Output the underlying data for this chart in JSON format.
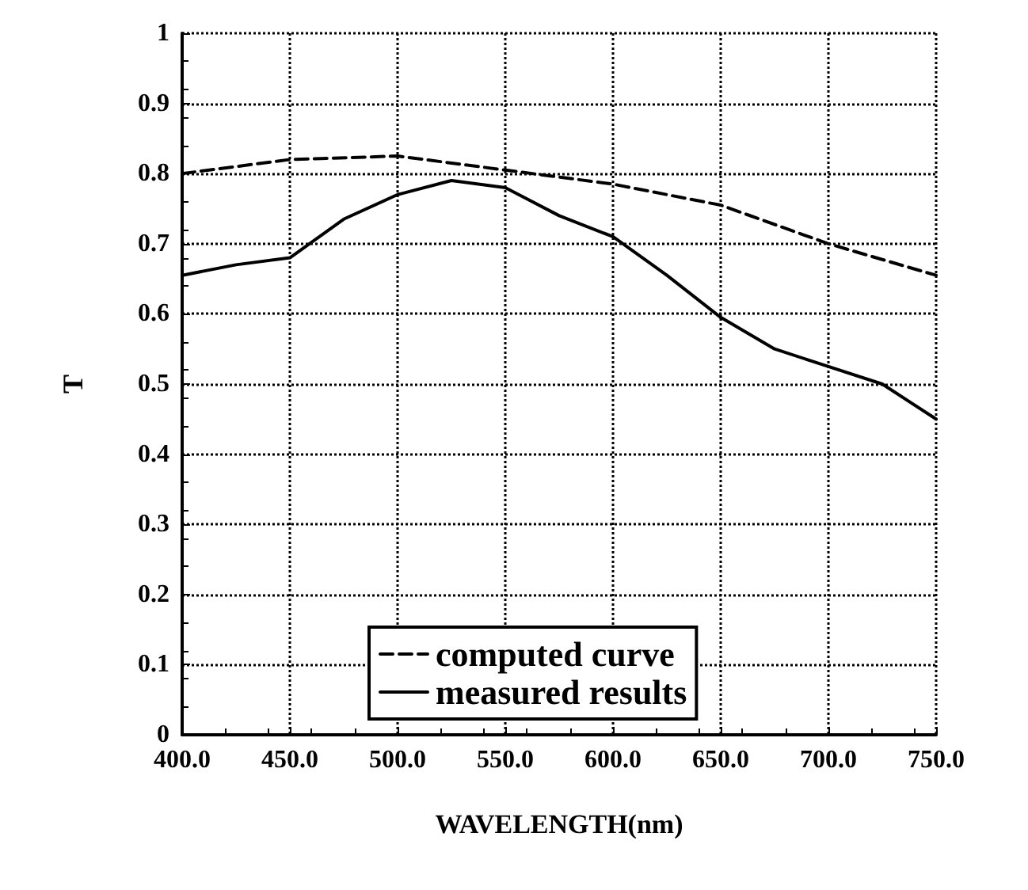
{
  "chart_data": {
    "type": "line",
    "xlabel": "WAVELENGTH(nm)",
    "ylabel": "T",
    "xlim": [
      400,
      750
    ],
    "ylim": [
      0,
      1
    ],
    "xticks": [
      {
        "value": 400,
        "label": "400.0"
      },
      {
        "value": 450,
        "label": "450.0"
      },
      {
        "value": 500,
        "label": "500.0"
      },
      {
        "value": 550,
        "label": "550.0"
      },
      {
        "value": 600,
        "label": "600.0"
      },
      {
        "value": 650,
        "label": "650.0"
      },
      {
        "value": 700,
        "label": "700.0"
      },
      {
        "value": 750,
        "label": "750.0"
      }
    ],
    "yticks": [
      0,
      0.1,
      0.2,
      0.3,
      0.4,
      0.5,
      0.6,
      0.7,
      0.8,
      0.9,
      1
    ],
    "grid": true,
    "legend": "bottom",
    "marker": "none",
    "series": [
      {
        "name": "computed curve",
        "color": "#000000",
        "line_style": "dashed",
        "x": [
          400,
          450,
          500,
          550,
          600,
          650,
          700,
          750
        ],
        "values": [
          0.8,
          0.82,
          0.825,
          0.805,
          0.785,
          0.755,
          0.7,
          0.655
        ]
      },
      {
        "name": "measured results",
        "color": "#000000",
        "line_style": "solid",
        "x": [
          400,
          425,
          450,
          475,
          500,
          525,
          550,
          575,
          600,
          625,
          650,
          675,
          700,
          725,
          750
        ],
        "values": [
          0.655,
          0.67,
          0.68,
          0.735,
          0.77,
          0.79,
          0.78,
          0.74,
          0.71,
          0.655,
          0.595,
          0.55,
          0.525,
          0.5,
          0.45
        ]
      }
    ]
  }
}
